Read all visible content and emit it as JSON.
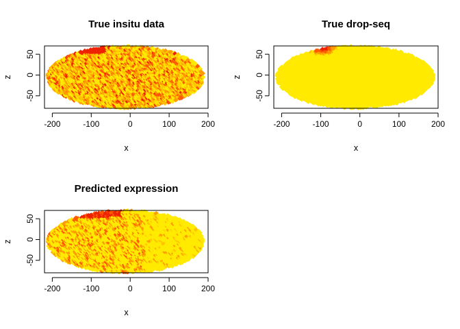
{
  "chart_data": [
    {
      "type": "scatter",
      "title": "True insitu data",
      "xlabel": "x",
      "ylabel": "z",
      "xlim": [
        -220,
        200
      ],
      "ylim": [
        -80,
        70
      ],
      "xticks": [
        -200,
        -100,
        0,
        100,
        200
      ],
      "yticks": [
        -50,
        0,
        50
      ],
      "grid": false,
      "legend": "none",
      "pattern": "mixed yellow, orange and red points across the whole embryo outline; red cluster in the upper left",
      "colors": [
        "#ffea00",
        "#ffc400",
        "#ff9a00",
        "#ff5a00",
        "#ee2200"
      ]
    },
    {
      "type": "scatter",
      "title": "True drop-seq",
      "xlabel": "x",
      "ylabel": "z",
      "xlim": [
        -220,
        200
      ],
      "ylim": [
        -80,
        70
      ],
      "xticks": [
        -200,
        -100,
        0,
        100,
        200
      ],
      "yticks": [
        -50,
        0,
        50
      ],
      "grid": false,
      "legend": "none",
      "pattern": "almost uniformly yellow; red/orange patch near x = -100, z = 60",
      "colors": [
        "#ffea00",
        "#ffc400",
        "#ff9a00",
        "#ff5a00",
        "#ee2200"
      ]
    },
    {
      "type": "scatter",
      "title": "Predicted expression",
      "xlabel": "x",
      "ylabel": "z",
      "xlim": [
        -220,
        200
      ],
      "ylim": [
        -80,
        70
      ],
      "xticks": [
        -200,
        -100,
        0,
        100,
        200
      ],
      "yticks": [
        -50,
        0,
        50
      ],
      "grid": false,
      "legend": "none",
      "pattern": "mostly yellow with scattered orange points; red along the upper left edge",
      "colors": [
        "#ffea00",
        "#ffc400",
        "#ff9a00",
        "#ff5a00",
        "#ee2200"
      ]
    }
  ]
}
